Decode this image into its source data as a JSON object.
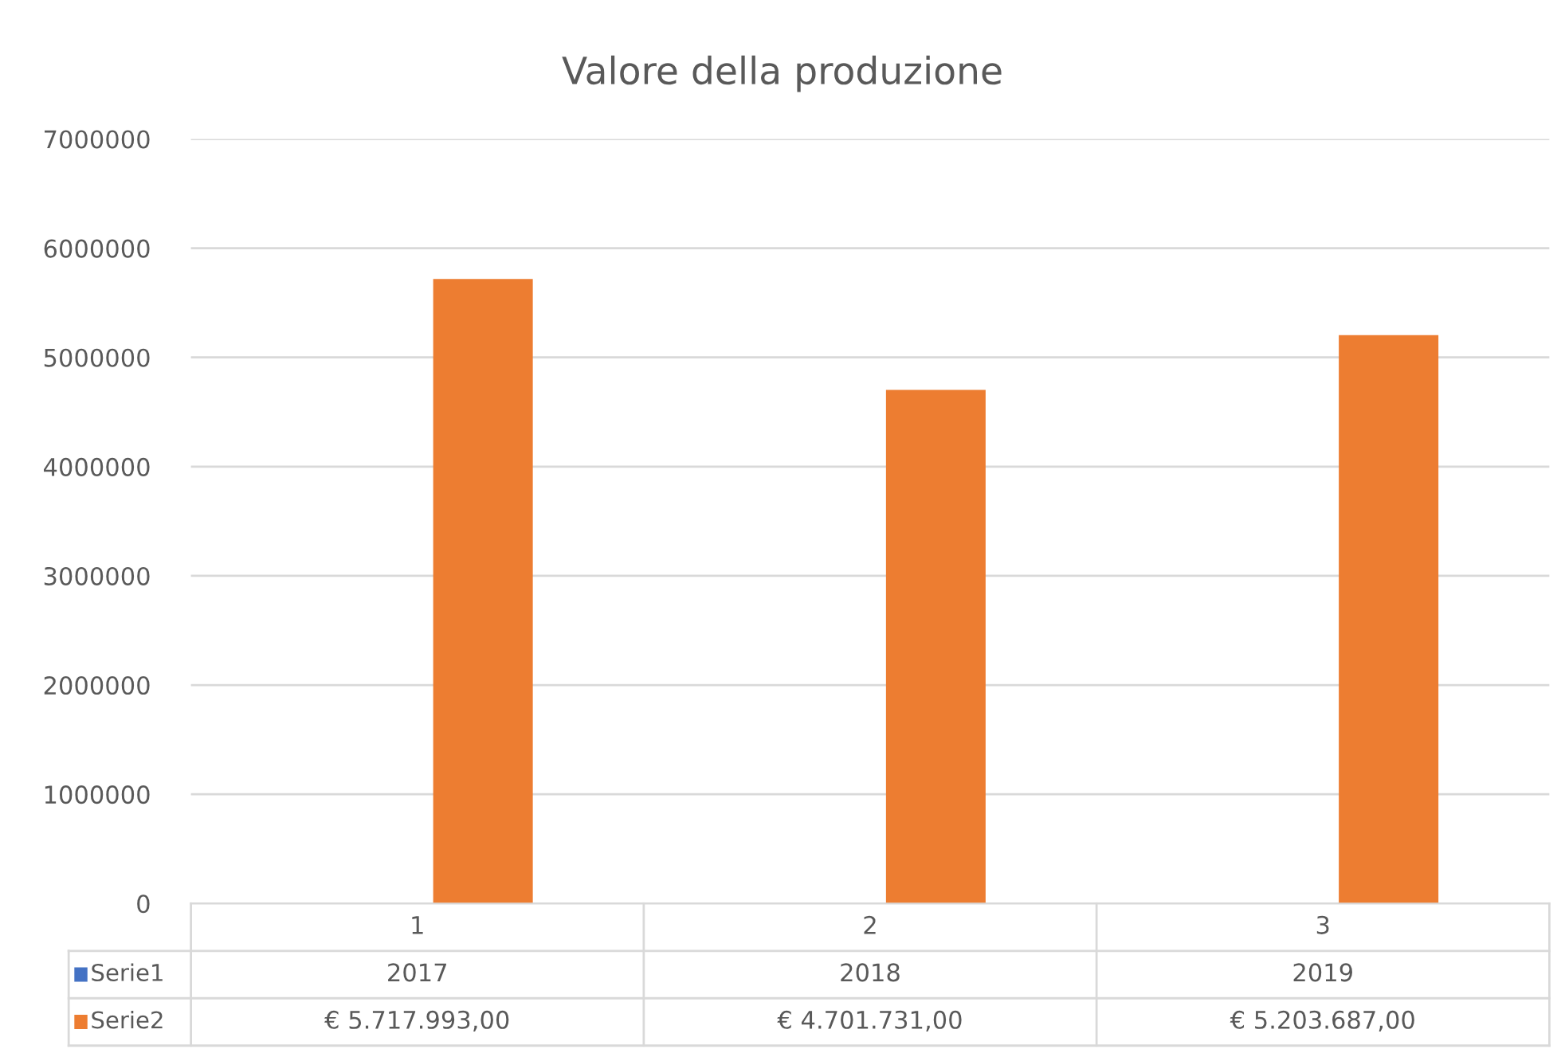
{
  "chart_data": {
    "type": "bar",
    "title": "Valore della produzione",
    "categories": [
      "1",
      "2",
      "3"
    ],
    "series": [
      {
        "name": "Serie1",
        "color": "#4472c4",
        "values": [
          2017,
          2018,
          2019
        ],
        "value_labels": [
          "2017",
          "2018",
          "2019"
        ]
      },
      {
        "name": "Serie2",
        "color": "#ed7d31",
        "values": [
          5717993,
          4701731,
          5203687
        ],
        "value_labels": [
          "€ 5.717.993,00",
          "€ 4.701.731,00",
          "€ 5.203.687,00"
        ]
      }
    ],
    "ylim": [
      0,
      7000000
    ],
    "yticks": [
      0,
      1000000,
      2000000,
      3000000,
      4000000,
      5000000,
      6000000,
      7000000
    ],
    "grid": "y",
    "legend": "bottom"
  }
}
